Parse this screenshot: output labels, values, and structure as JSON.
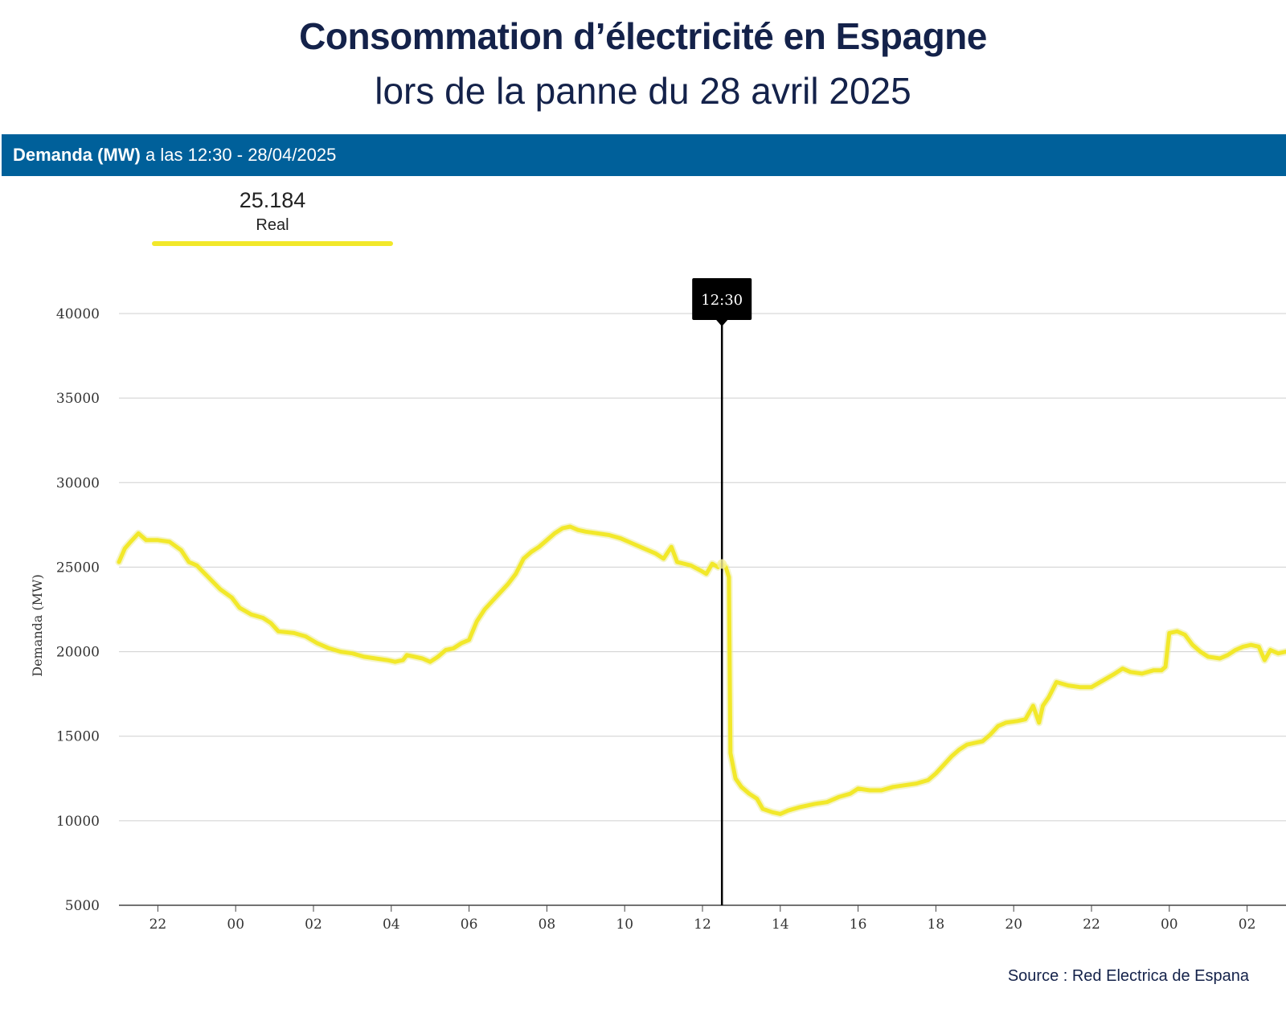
{
  "title": "Consommation d’électricité en Espagne",
  "subtitle": "lors de la panne du 28 avril 2025",
  "header": {
    "bold": "Demanda (MW)",
    "rest": " a las 12:30 - 28/04/2025"
  },
  "legend": {
    "value": "25.184",
    "label": "Real",
    "color": "#f2e82a"
  },
  "tooltip": {
    "label": "12:30"
  },
  "source": "Source : Red Electrica de Espana",
  "chart_data": {
    "type": "line",
    "ylabel": "Demanda (MW)",
    "ylim": [
      5000,
      40000
    ],
    "yticks": [
      40000,
      35000,
      30000,
      25000,
      20000,
      15000,
      10000,
      5000
    ],
    "x_unit": "hours since 21:00 on 27/04/2025",
    "xlim": [
      0,
      30
    ],
    "xticks": [
      {
        "x": 1,
        "label": "22"
      },
      {
        "x": 3,
        "label": "00"
      },
      {
        "x": 5,
        "label": "02"
      },
      {
        "x": 7,
        "label": "04"
      },
      {
        "x": 9,
        "label": "06"
      },
      {
        "x": 11,
        "label": "08"
      },
      {
        "x": 13,
        "label": "10"
      },
      {
        "x": 15,
        "label": "12"
      },
      {
        "x": 17,
        "label": "14"
      },
      {
        "x": 19,
        "label": "16"
      },
      {
        "x": 21,
        "label": "18"
      },
      {
        "x": 23,
        "label": "20"
      },
      {
        "x": 25,
        "label": "22"
      },
      {
        "x": 27,
        "label": "00"
      },
      {
        "x": 29,
        "label": "02"
      }
    ],
    "cursor_x": 15.5,
    "series": [
      {
        "name": "Real",
        "color": "#f2e82a",
        "points": [
          [
            0.0,
            25300
          ],
          [
            0.15,
            26100
          ],
          [
            0.3,
            26500
          ],
          [
            0.5,
            27000
          ],
          [
            0.7,
            26600
          ],
          [
            1.0,
            26600
          ],
          [
            1.3,
            26500
          ],
          [
            1.6,
            26000
          ],
          [
            1.8,
            25300
          ],
          [
            2.0,
            25100
          ],
          [
            2.3,
            24400
          ],
          [
            2.6,
            23700
          ],
          [
            2.9,
            23200
          ],
          [
            3.1,
            22600
          ],
          [
            3.4,
            22200
          ],
          [
            3.7,
            22000
          ],
          [
            3.9,
            21700
          ],
          [
            4.1,
            21200
          ],
          [
            4.5,
            21100
          ],
          [
            4.8,
            20900
          ],
          [
            5.1,
            20500
          ],
          [
            5.4,
            20200
          ],
          [
            5.7,
            20000
          ],
          [
            6.0,
            19900
          ],
          [
            6.3,
            19700
          ],
          [
            6.6,
            19600
          ],
          [
            6.9,
            19500
          ],
          [
            7.1,
            19400
          ],
          [
            7.3,
            19500
          ],
          [
            7.4,
            19800
          ],
          [
            7.8,
            19600
          ],
          [
            8.0,
            19400
          ],
          [
            8.2,
            19700
          ],
          [
            8.4,
            20100
          ],
          [
            8.6,
            20200
          ],
          [
            8.8,
            20500
          ],
          [
            9.0,
            20700
          ],
          [
            9.2,
            21800
          ],
          [
            9.4,
            22500
          ],
          [
            9.6,
            23000
          ],
          [
            9.8,
            23500
          ],
          [
            10.0,
            24000
          ],
          [
            10.2,
            24600
          ],
          [
            10.4,
            25500
          ],
          [
            10.6,
            25900
          ],
          [
            10.8,
            26200
          ],
          [
            11.0,
            26600
          ],
          [
            11.2,
            27000
          ],
          [
            11.4,
            27300
          ],
          [
            11.6,
            27400
          ],
          [
            11.8,
            27200
          ],
          [
            12.0,
            27100
          ],
          [
            12.3,
            27000
          ],
          [
            12.6,
            26900
          ],
          [
            12.9,
            26700
          ],
          [
            13.2,
            26400
          ],
          [
            13.5,
            26100
          ],
          [
            13.8,
            25800
          ],
          [
            14.0,
            25500
          ],
          [
            14.2,
            26200
          ],
          [
            14.35,
            25300
          ],
          [
            14.7,
            25100
          ],
          [
            14.95,
            24800
          ],
          [
            15.1,
            24600
          ],
          [
            15.25,
            25200
          ],
          [
            15.4,
            25000
          ],
          [
            15.5,
            25184
          ],
          [
            15.6,
            25000
          ],
          [
            15.68,
            24400
          ],
          [
            15.72,
            14000
          ],
          [
            15.85,
            12500
          ],
          [
            16.0,
            12000
          ],
          [
            16.2,
            11600
          ],
          [
            16.4,
            11300
          ],
          [
            16.55,
            10700
          ],
          [
            16.8,
            10500
          ],
          [
            17.0,
            10400
          ],
          [
            17.2,
            10600
          ],
          [
            17.5,
            10800
          ],
          [
            17.9,
            11000
          ],
          [
            18.2,
            11100
          ],
          [
            18.5,
            11400
          ],
          [
            18.8,
            11600
          ],
          [
            19.0,
            11900
          ],
          [
            19.3,
            11800
          ],
          [
            19.6,
            11800
          ],
          [
            19.9,
            12000
          ],
          [
            20.2,
            12100
          ],
          [
            20.5,
            12200
          ],
          [
            20.8,
            12400
          ],
          [
            21.0,
            12800
          ],
          [
            21.2,
            13300
          ],
          [
            21.4,
            13800
          ],
          [
            21.6,
            14200
          ],
          [
            21.8,
            14500
          ],
          [
            22.0,
            14600
          ],
          [
            22.2,
            14700
          ],
          [
            22.4,
            15100
          ],
          [
            22.6,
            15600
          ],
          [
            22.8,
            15800
          ],
          [
            23.1,
            15900
          ],
          [
            23.3,
            16000
          ],
          [
            23.5,
            16800
          ],
          [
            23.65,
            15800
          ],
          [
            23.75,
            16800
          ],
          [
            23.9,
            17300
          ],
          [
            24.1,
            18200
          ],
          [
            24.4,
            18000
          ],
          [
            24.7,
            17900
          ],
          [
            25.0,
            17900
          ],
          [
            25.3,
            18300
          ],
          [
            25.6,
            18700
          ],
          [
            25.8,
            19000
          ],
          [
            26.0,
            18800
          ],
          [
            26.3,
            18700
          ],
          [
            26.6,
            18900
          ],
          [
            26.8,
            18900
          ],
          [
            26.9,
            19100
          ],
          [
            27.0,
            21100
          ],
          [
            27.2,
            21200
          ],
          [
            27.4,
            21000
          ],
          [
            27.6,
            20400
          ],
          [
            27.8,
            20000
          ],
          [
            28.0,
            19700
          ],
          [
            28.3,
            19600
          ],
          [
            28.5,
            19800
          ],
          [
            28.7,
            20100
          ],
          [
            28.9,
            20300
          ],
          [
            29.1,
            20400
          ],
          [
            29.3,
            20300
          ],
          [
            29.45,
            19500
          ],
          [
            29.6,
            20100
          ],
          [
            29.8,
            19900
          ],
          [
            30.0,
            20000
          ]
        ]
      }
    ]
  }
}
